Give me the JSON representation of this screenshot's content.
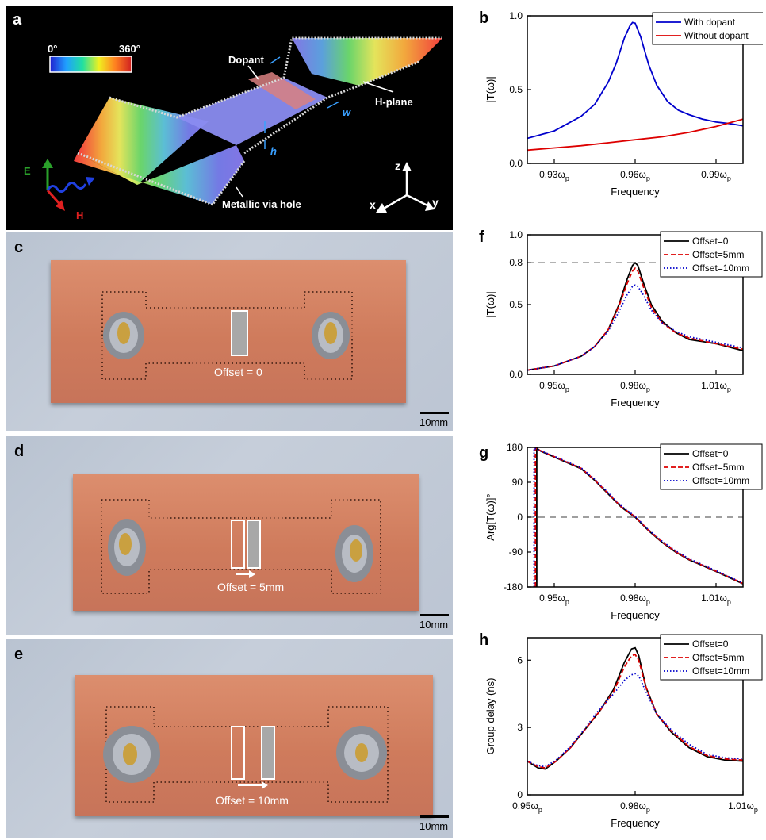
{
  "panels": {
    "a": "a",
    "b": "b",
    "c": "c",
    "d": "d",
    "e": "e",
    "f": "f",
    "g": "g",
    "h": "h"
  },
  "schematic": {
    "colorbar_min": "0°",
    "colorbar_max": "360°",
    "dopant": "Dopant",
    "h_plane": "H-plane",
    "w": "w",
    "h": "h",
    "via": "Metallic via hole",
    "E": "E",
    "H": "H",
    "axis_z": "z",
    "axis_x": "x",
    "axis_y": "y"
  },
  "photos": [
    {
      "offset_label": "Offset = 0",
      "scale": "10mm"
    },
    {
      "offset_label": "Offset = 5mm",
      "scale": "10mm"
    },
    {
      "offset_label": "Offset = 10mm",
      "scale": "10mm"
    }
  ],
  "chart_data": [
    {
      "id": "b",
      "type": "line",
      "xlabel": "Frequency",
      "ylabel": "|T(ω)|",
      "xlim": [
        0.92,
        1.0
      ],
      "ylim": [
        0,
        1.0
      ],
      "xticks": [
        0.93,
        0.96,
        0.99
      ],
      "xtick_labels": [
        "0.93ω",
        "0.96ω",
        "0.99ω"
      ],
      "xtick_sub": "p",
      "yticks": [
        0.0,
        0.5,
        1.0
      ],
      "ytick_labels": [
        "0.0",
        "0.5",
        "1.0"
      ],
      "legend": "top-right",
      "series": [
        {
          "name": "With dopant",
          "color": "#0000cc",
          "dash": "solid",
          "x": [
            0.92,
            0.93,
            0.94,
            0.945,
            0.95,
            0.953,
            0.956,
            0.958,
            0.959,
            0.96,
            0.962,
            0.965,
            0.968,
            0.972,
            0.976,
            0.98,
            0.985,
            0.99,
            0.995,
            1.0
          ],
          "y": [
            0.17,
            0.22,
            0.32,
            0.4,
            0.55,
            0.68,
            0.85,
            0.93,
            0.955,
            0.95,
            0.86,
            0.67,
            0.53,
            0.42,
            0.36,
            0.33,
            0.3,
            0.28,
            0.27,
            0.255
          ]
        },
        {
          "name": "Without dopant",
          "color": "#dd0000",
          "dash": "solid",
          "x": [
            0.92,
            0.93,
            0.94,
            0.95,
            0.96,
            0.97,
            0.98,
            0.99,
            1.0
          ],
          "y": [
            0.09,
            0.105,
            0.12,
            0.14,
            0.16,
            0.18,
            0.21,
            0.25,
            0.3
          ]
        }
      ]
    },
    {
      "id": "f",
      "type": "line",
      "xlabel": "Frequency",
      "ylabel": "|T(ω)|",
      "xlim": [
        0.94,
        1.02
      ],
      "ylim": [
        0,
        1.0
      ],
      "xticks": [
        0.95,
        0.98,
        1.01
      ],
      "xtick_labels": [
        "0.95ω",
        "0.98ω",
        "1.01ω"
      ],
      "xtick_sub": "p",
      "yticks": [
        0.0,
        0.5,
        0.8,
        1.0
      ],
      "ytick_labels": [
        "0.0",
        "0.5",
        "0.8",
        "1.0"
      ],
      "hline": 0.8,
      "legend": "top-right",
      "series": [
        {
          "name": "Offset=0",
          "color": "#000000",
          "dash": "solid",
          "x": [
            0.94,
            0.95,
            0.96,
            0.965,
            0.97,
            0.974,
            0.977,
            0.979,
            0.98,
            0.981,
            0.983,
            0.986,
            0.99,
            0.995,
            1.0,
            1.01,
            1.02
          ],
          "y": [
            0.03,
            0.06,
            0.13,
            0.2,
            0.32,
            0.5,
            0.68,
            0.78,
            0.8,
            0.78,
            0.66,
            0.5,
            0.38,
            0.3,
            0.25,
            0.22,
            0.17
          ]
        },
        {
          "name": "Offset=5mm",
          "color": "#dd0000",
          "dash": "dashed",
          "x": [
            0.94,
            0.95,
            0.96,
            0.965,
            0.97,
            0.974,
            0.977,
            0.979,
            0.98,
            0.981,
            0.983,
            0.986,
            0.99,
            0.995,
            1.0,
            1.01,
            1.02
          ],
          "y": [
            0.03,
            0.06,
            0.13,
            0.2,
            0.32,
            0.49,
            0.65,
            0.74,
            0.76,
            0.74,
            0.63,
            0.48,
            0.37,
            0.3,
            0.26,
            0.22,
            0.18
          ]
        },
        {
          "name": "Offset=10mm",
          "color": "#0000cc",
          "dash": "dotted",
          "x": [
            0.94,
            0.95,
            0.96,
            0.965,
            0.97,
            0.974,
            0.977,
            0.979,
            0.98,
            0.981,
            0.983,
            0.986,
            0.99,
            0.995,
            1.0,
            1.01,
            1.02
          ],
          "y": [
            0.03,
            0.06,
            0.13,
            0.2,
            0.31,
            0.45,
            0.57,
            0.63,
            0.64,
            0.63,
            0.57,
            0.46,
            0.37,
            0.31,
            0.27,
            0.23,
            0.19
          ]
        }
      ]
    },
    {
      "id": "g",
      "type": "line",
      "xlabel": "Frequency",
      "ylabel": "Arg[T(ω)]°",
      "xlim": [
        0.94,
        1.02
      ],
      "ylim": [
        -180,
        180
      ],
      "xticks": [
        0.95,
        0.98,
        1.01
      ],
      "xtick_labels": [
        "0.95ω",
        "0.98ω",
        "1.01ω"
      ],
      "xtick_sub": "p",
      "yticks": [
        -180,
        -90,
        0,
        90,
        180
      ],
      "ytick_labels": [
        "-180",
        "-90",
        "0",
        "90",
        "180"
      ],
      "hline": 0,
      "legend": "top-right",
      "series": [
        {
          "name": "Offset=0",
          "color": "#000000",
          "dash": "solid",
          "x": [
            0.9435,
            0.9435,
            0.945,
            0.95,
            0.955,
            0.96,
            0.965,
            0.97,
            0.975,
            0.98,
            0.985,
            0.99,
            0.995,
            1.0,
            1.01,
            1.02
          ],
          "y": [
            -180,
            178,
            170,
            155,
            140,
            125,
            95,
            60,
            25,
            0,
            -35,
            -65,
            -90,
            -110,
            -140,
            -172
          ]
        },
        {
          "name": "Offset=5mm",
          "color": "#dd0000",
          "dash": "dashed",
          "x": [
            0.943,
            0.943,
            0.945,
            0.95,
            0.955,
            0.96,
            0.965,
            0.97,
            0.975,
            0.98,
            0.985,
            0.99,
            0.995,
            1.0,
            1.01,
            1.02
          ],
          "y": [
            -180,
            178,
            171,
            156,
            141,
            126,
            96,
            61,
            26,
            1,
            -34,
            -64,
            -89,
            -109,
            -139,
            -171
          ]
        },
        {
          "name": "Offset=10mm",
          "color": "#0000cc",
          "dash": "dotted",
          "x": [
            0.9425,
            0.9425,
            0.945,
            0.95,
            0.955,
            0.96,
            0.965,
            0.97,
            0.975,
            0.98,
            0.985,
            0.99,
            0.995,
            1.0,
            1.01,
            1.02
          ],
          "y": [
            -180,
            178,
            171,
            157,
            142,
            127,
            98,
            63,
            28,
            2,
            -33,
            -62,
            -87,
            -107,
            -138,
            -170
          ]
        }
      ]
    },
    {
      "id": "h",
      "type": "line",
      "xlabel": "Frequency",
      "ylabel": "Group delay (ns)",
      "xlim": [
        0.95,
        1.01
      ],
      "ylim": [
        0,
        7
      ],
      "xticks": [
        0.95,
        0.98,
        1.01
      ],
      "xtick_labels": [
        "0.95ω",
        "0.98ω",
        "1.01ω"
      ],
      "xtick_sub": "p",
      "yticks": [
        0,
        3,
        6
      ],
      "ytick_labels": [
        "0",
        "3",
        "6"
      ],
      "legend": "top-right",
      "series": [
        {
          "name": "Offset=0",
          "color": "#000000",
          "dash": "solid",
          "x": [
            0.95,
            0.953,
            0.955,
            0.958,
            0.962,
            0.966,
            0.97,
            0.974,
            0.977,
            0.979,
            0.98,
            0.981,
            0.983,
            0.986,
            0.99,
            0.995,
            1.0,
            1.005,
            1.01
          ],
          "y": [
            1.5,
            1.2,
            1.15,
            1.5,
            2.1,
            2.9,
            3.7,
            4.7,
            5.9,
            6.5,
            6.55,
            6.2,
            4.8,
            3.6,
            2.8,
            2.1,
            1.7,
            1.55,
            1.5
          ]
        },
        {
          "name": "Offset=5mm",
          "color": "#dd0000",
          "dash": "dashed",
          "x": [
            0.95,
            0.953,
            0.955,
            0.958,
            0.962,
            0.966,
            0.97,
            0.974,
            0.977,
            0.979,
            0.98,
            0.981,
            0.983,
            0.986,
            0.99,
            0.995,
            1.0,
            1.005,
            1.01
          ],
          "y": [
            1.5,
            1.25,
            1.2,
            1.5,
            2.1,
            2.9,
            3.7,
            4.6,
            5.7,
            6.2,
            6.25,
            6.0,
            4.8,
            3.6,
            2.85,
            2.15,
            1.75,
            1.6,
            1.55
          ]
        },
        {
          "name": "Offset=10mm",
          "color": "#0000cc",
          "dash": "dotted",
          "x": [
            0.95,
            0.953,
            0.955,
            0.958,
            0.962,
            0.966,
            0.97,
            0.974,
            0.977,
            0.979,
            0.98,
            0.981,
            0.983,
            0.986,
            0.99,
            0.995,
            1.0,
            1.005,
            1.01
          ],
          "y": [
            1.5,
            1.3,
            1.25,
            1.55,
            2.15,
            2.95,
            3.8,
            4.5,
            5.1,
            5.35,
            5.4,
            5.3,
            4.6,
            3.6,
            2.9,
            2.25,
            1.8,
            1.65,
            1.6
          ]
        }
      ]
    }
  ]
}
